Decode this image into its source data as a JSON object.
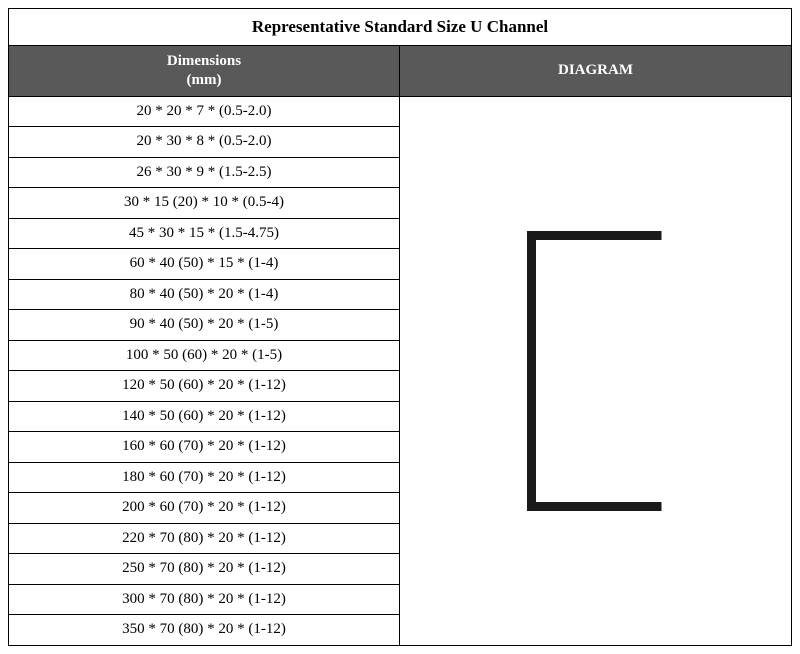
{
  "title": "Representative Standard Size U Channel",
  "columns": {
    "dimensions_label": "Dimensions",
    "dimensions_unit": "(mm)",
    "diagram_label": "DIAGRAM"
  },
  "rows": [
    "20 * 20 * 7 * (0.5-2.0)",
    "20 * 30 * 8 * (0.5-2.0)",
    "26 * 30 * 9 * (1.5-2.5)",
    "30 * 15 (20) * 10 * (0.5-4)",
    "45 * 30 * 15 * (1.5-4.75)",
    "60 * 40 (50) * 15 * (1-4)",
    "80 * 40 (50) * 20 * (1-4)",
    "90 * 40 (50) * 20 * (1-5)",
    "100 * 50 (60) * 20 * (1-5)",
    "120 * 50 (60) * 20 * (1-12)",
    "140 * 50 (60) * 20 * (1-12)",
    "160 * 60 (70) * 20 * (1-12)",
    "180 * 60 (70) * 20 * (1-12)",
    "200 * 60 (70) * 20 * (1-12)",
    "220 * 70 (80) * 20 * (1-12)",
    "250 * 70 (80) * 20 * (1-12)",
    "300 * 70 (80) * 20 * (1-12)",
    "350 * 70 (80) * 20 * (1-12)"
  ],
  "style": {
    "header_bg": "#595959",
    "header_fg": "#ffffff",
    "border_color": "#000000",
    "cell_bg": "#ffffff",
    "font_family": "Times New Roman",
    "title_fontsize_pt": 13,
    "header_fontsize_pt": 11,
    "cell_fontsize_pt": 11
  },
  "diagram": {
    "type": "u-channel",
    "stroke_color": "#1a1a1a",
    "stroke_width": 9,
    "outer_width": 150,
    "outer_height": 280,
    "flange_length": 130
  }
}
